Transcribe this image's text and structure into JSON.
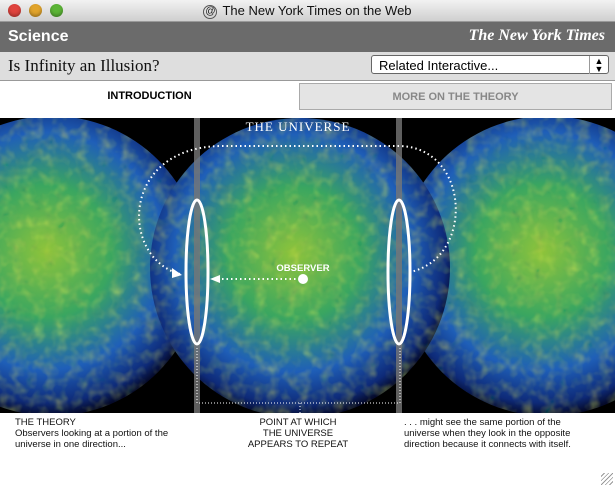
{
  "window": {
    "title": "The New York Times on the Web"
  },
  "header": {
    "section": "Science",
    "logo": "The New York Times"
  },
  "toolbar": {
    "headline": "Is Infinity an Illusion?",
    "dropdown": "Related Interactive..."
  },
  "tabs": [
    "INTRODUCTION",
    "MORE ON THE THEORY"
  ],
  "figure": {
    "title": "THE UNIVERSE",
    "observer_label": "OBSERVER"
  },
  "captions": {
    "left": {
      "heading": "THE THEORY",
      "lines": [
        "Observers looking at a portion of the",
        "universe in one direction..."
      ]
    },
    "center": {
      "lines": [
        "POINT AT WHICH",
        "THE UNIVERSE",
        "APPEARS TO REPEAT"
      ]
    },
    "right": {
      "lines": [
        ". . . might see the same portion of the",
        "universe when they look in the opposite",
        "direction because it connects with itself."
      ]
    }
  }
}
